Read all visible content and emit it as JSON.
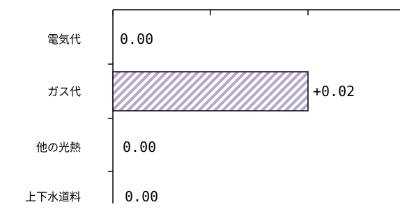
{
  "chart_data": {
    "type": "bar",
    "orientation": "horizontal",
    "categories": [
      "電気代",
      "ガス代",
      "他の光熱",
      "上下水道料"
    ],
    "values": [
      0.0,
      0.02,
      0.0,
      0.0
    ],
    "data_labels": [
      "0.00",
      "+0.02",
      "0.00",
      "0.00"
    ],
    "xlim": [
      0,
      0.04
    ],
    "x_tick_labels_visible": false,
    "grid": false,
    "legend": "none",
    "bar_fill": "hatched",
    "colors": {
      "hatch": "#b4a6cc",
      "bar_edge": "#000000",
      "axis": "#000000",
      "text": "#000000"
    }
  }
}
